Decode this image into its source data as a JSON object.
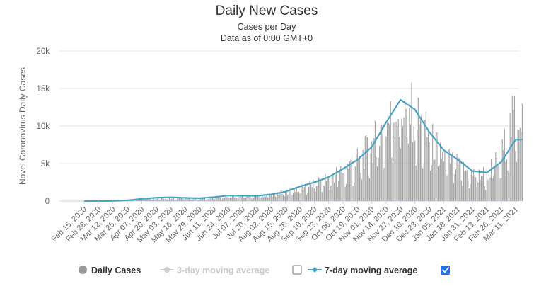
{
  "chart_data": {
    "type": "bar",
    "title": "Daily New Cases",
    "subtitle_line1": "Cases per Day",
    "subtitle_line2": "Data as of 0:00 GMT+0",
    "ylabel": "Novel Coronavirus Daily Cases",
    "ylim": [
      0,
      20000
    ],
    "y_ticks": [
      "0",
      "5k",
      "10k",
      "15k",
      "20k"
    ],
    "x_tick_labels": [
      "Feb 15, 2020",
      "Feb 28, 2020",
      "Mar 12, 2020",
      "Mar 25, 2020",
      "Apr 07, 2020",
      "Apr 20, 2020",
      "May 03, 2020",
      "May 16, 2020",
      "May 29, 2020",
      "Jun 11, 2020",
      "Jun 24, 2020",
      "Jul 07, 2020",
      "Jul 20, 2020",
      "Aug 02, 2020",
      "Aug 15, 2020",
      "Aug 28, 2020",
      "Sep 10, 2020",
      "Sep 23, 2020",
      "Oct 06, 2020",
      "Oct 19, 2020",
      "Nov 01, 2020",
      "Nov 14, 2020",
      "Nov 27, 2020",
      "Dec 10, 2020",
      "Dec 23, 2020",
      "Jan 05, 2021",
      "Jan 18, 2021",
      "Jan 31, 2021",
      "Feb 13, 2021",
      "Feb 26, 2021",
      "Mar 11, 2021"
    ],
    "grid": true,
    "legend_position": "bottom",
    "series": [
      {
        "name": "Daily Cases",
        "color": "#a0a0a0",
        "visible": true,
        "values_every_13_days": [
          0,
          0,
          10,
          100,
          300,
          400,
          420,
          380,
          350,
          500,
          700,
          650,
          700,
          900,
          1300,
          1900,
          2500,
          3300,
          4500,
          5800,
          8000,
          11000,
          13500,
          12500,
          9000,
          6500,
          5000,
          3800,
          4000,
          6500,
          12800
        ]
      },
      {
        "name": "3-day moving average",
        "color": "#c8c8c8",
        "visible": false
      },
      {
        "name": "7-day moving average",
        "color": "#4aa3c3",
        "visible": true,
        "values_every_13_days": [
          0,
          0,
          10,
          100,
          300,
          450,
          500,
          430,
          380,
          520,
          750,
          720,
          700,
          900,
          1250,
          1950,
          2500,
          3200,
          4300,
          5500,
          7200,
          10500,
          13500,
          12200,
          9200,
          6800,
          5500,
          4000,
          3800,
          5200,
          8200
        ]
      }
    ]
  },
  "legend": {
    "daily_label": "Daily Cases",
    "ma3_label": "3-day moving average",
    "ma7_label": "7-day moving average",
    "ma3_checked": false,
    "ma7_checked": true
  }
}
